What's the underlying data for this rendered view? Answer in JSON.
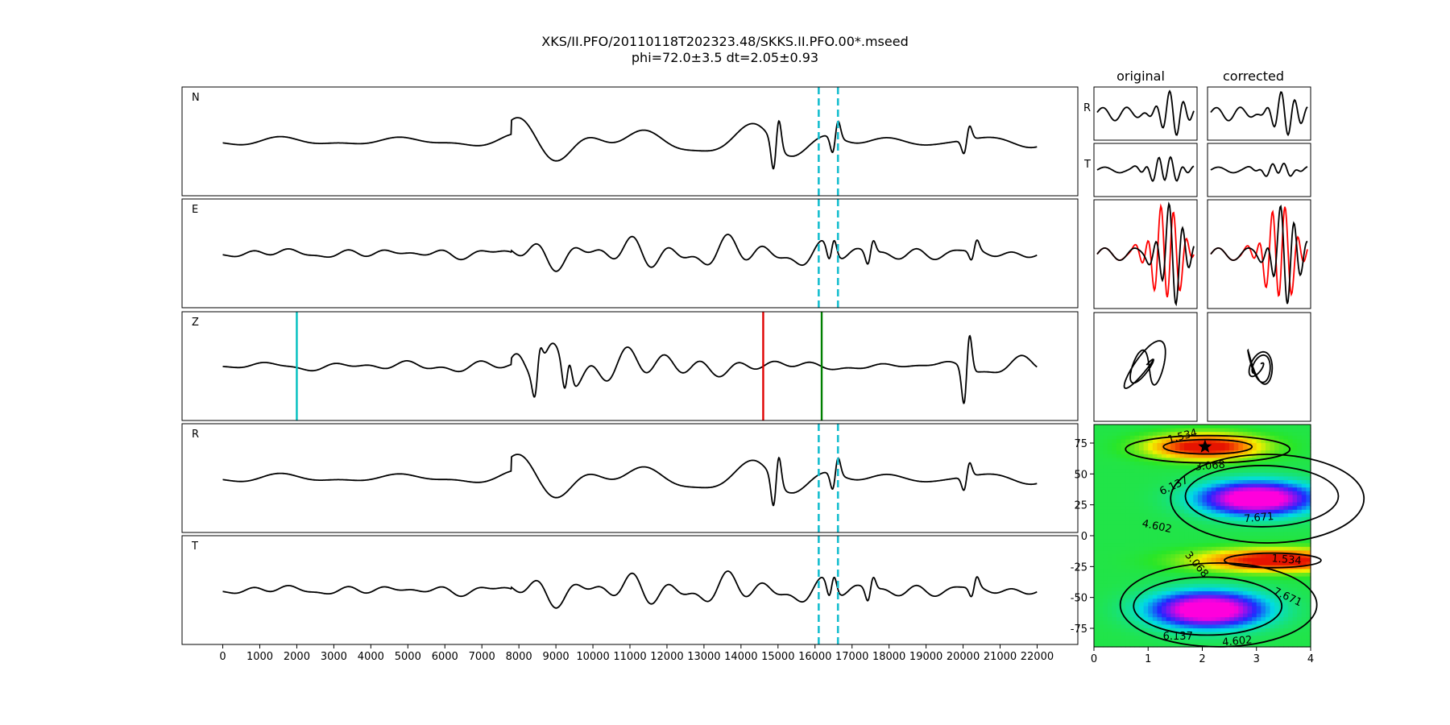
{
  "title": {
    "line1": "XKS/II.PFO/20110118T202323.48/SKKS.II.PFO.00*.mseed",
    "line2": "phi=72.0±3.5 dt=2.05±0.93"
  },
  "chart_data": [
    {
      "type": "line",
      "name": "traces",
      "x_ticks": [
        0,
        1000,
        2000,
        3000,
        4000,
        5000,
        6000,
        7000,
        8000,
        9000,
        10000,
        11000,
        12000,
        13000,
        14000,
        15000,
        16000,
        17000,
        18000,
        19000,
        20000,
        21000,
        22000
      ],
      "xlim": [
        -1100,
        23100
      ],
      "panels": [
        {
          "label": "N",
          "seed": 11,
          "events": [
            {
              "x": 14950,
              "amp": 1.25
            },
            {
              "x": 16550,
              "amp": 0.75
            },
            {
              "x": 20100,
              "amp": 0.6
            }
          ]
        },
        {
          "label": "E",
          "seed": 23,
          "events": [
            {
              "x": 16450,
              "amp": 0.6
            },
            {
              "x": 17500,
              "amp": 0.55
            },
            {
              "x": 20300,
              "amp": 0.45
            }
          ]
        },
        {
          "label": "Z",
          "seed": 37,
          "events": [
            {
              "x": 8500,
              "amp": 0.9
            },
            {
              "x": 9300,
              "amp": 0.85
            },
            {
              "x": 20100,
              "amp": 1.6
            }
          ]
        },
        {
          "label": "R",
          "seed": 11,
          "events": [
            {
              "x": 14950,
              "amp": 1.25
            },
            {
              "x": 16550,
              "amp": 0.75
            },
            {
              "x": 20100,
              "amp": 0.6
            }
          ]
        },
        {
          "label": "T",
          "seed": 23,
          "events": [
            {
              "x": 16450,
              "amp": 0.6
            },
            {
              "x": 17500,
              "amp": 0.55
            },
            {
              "x": 20300,
              "amp": 0.45
            }
          ]
        }
      ],
      "window_lines": {
        "x": [
          16100,
          16620
        ],
        "color": "#17becf",
        "style": "dashed",
        "panels": [
          "N",
          "E",
          "R",
          "T"
        ]
      },
      "picks_Z": [
        {
          "x": 2000,
          "color": "#00bfbf"
        },
        {
          "x": 14600,
          "color": "#e00000"
        },
        {
          "x": 16180,
          "color": "#008000"
        }
      ]
    },
    {
      "type": "line",
      "name": "waveform_insets",
      "columns": [
        "original",
        "corrected"
      ],
      "row_labels": [
        "R",
        "T"
      ],
      "overlay_colors": [
        "#ff0000",
        "#000000"
      ]
    },
    {
      "type": "heatmap",
      "name": "energy_map",
      "xlim": [
        0,
        4
      ],
      "ylim": [
        -90,
        90
      ],
      "x_ticks": [
        0,
        1,
        2,
        3,
        4
      ],
      "y_ticks": [
        75,
        50,
        25,
        0,
        -25,
        -50,
        -75
      ],
      "contour_levels": [
        "1.534",
        "3.068",
        "4.602",
        "6.137",
        "7.671"
      ],
      "best": {
        "dt": 2.05,
        "phi": 72.0
      }
    }
  ]
}
